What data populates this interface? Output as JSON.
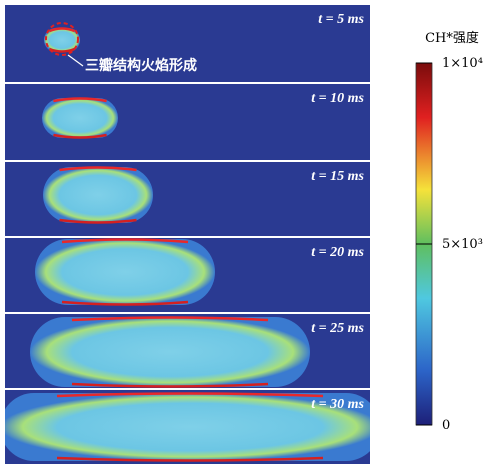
{
  "panels": [
    {
      "label": "t = 5 ms"
    },
    {
      "label": "t = 10 ms"
    },
    {
      "label": "t = 15 ms"
    },
    {
      "label": "t = 20 ms"
    },
    {
      "label": "t = 25 ms"
    },
    {
      "label": "t = 30 ms"
    }
  ],
  "annotation": "三瓣结构火焰形成",
  "colorbar": {
    "title": "CH*强度",
    "range": [
      0,
      10000
    ],
    "ticks": [
      0,
      {
        "value": 5000,
        "label": "5×10³"
      },
      {
        "value": 10000,
        "label": "1×10⁴"
      }
    ]
  }
}
